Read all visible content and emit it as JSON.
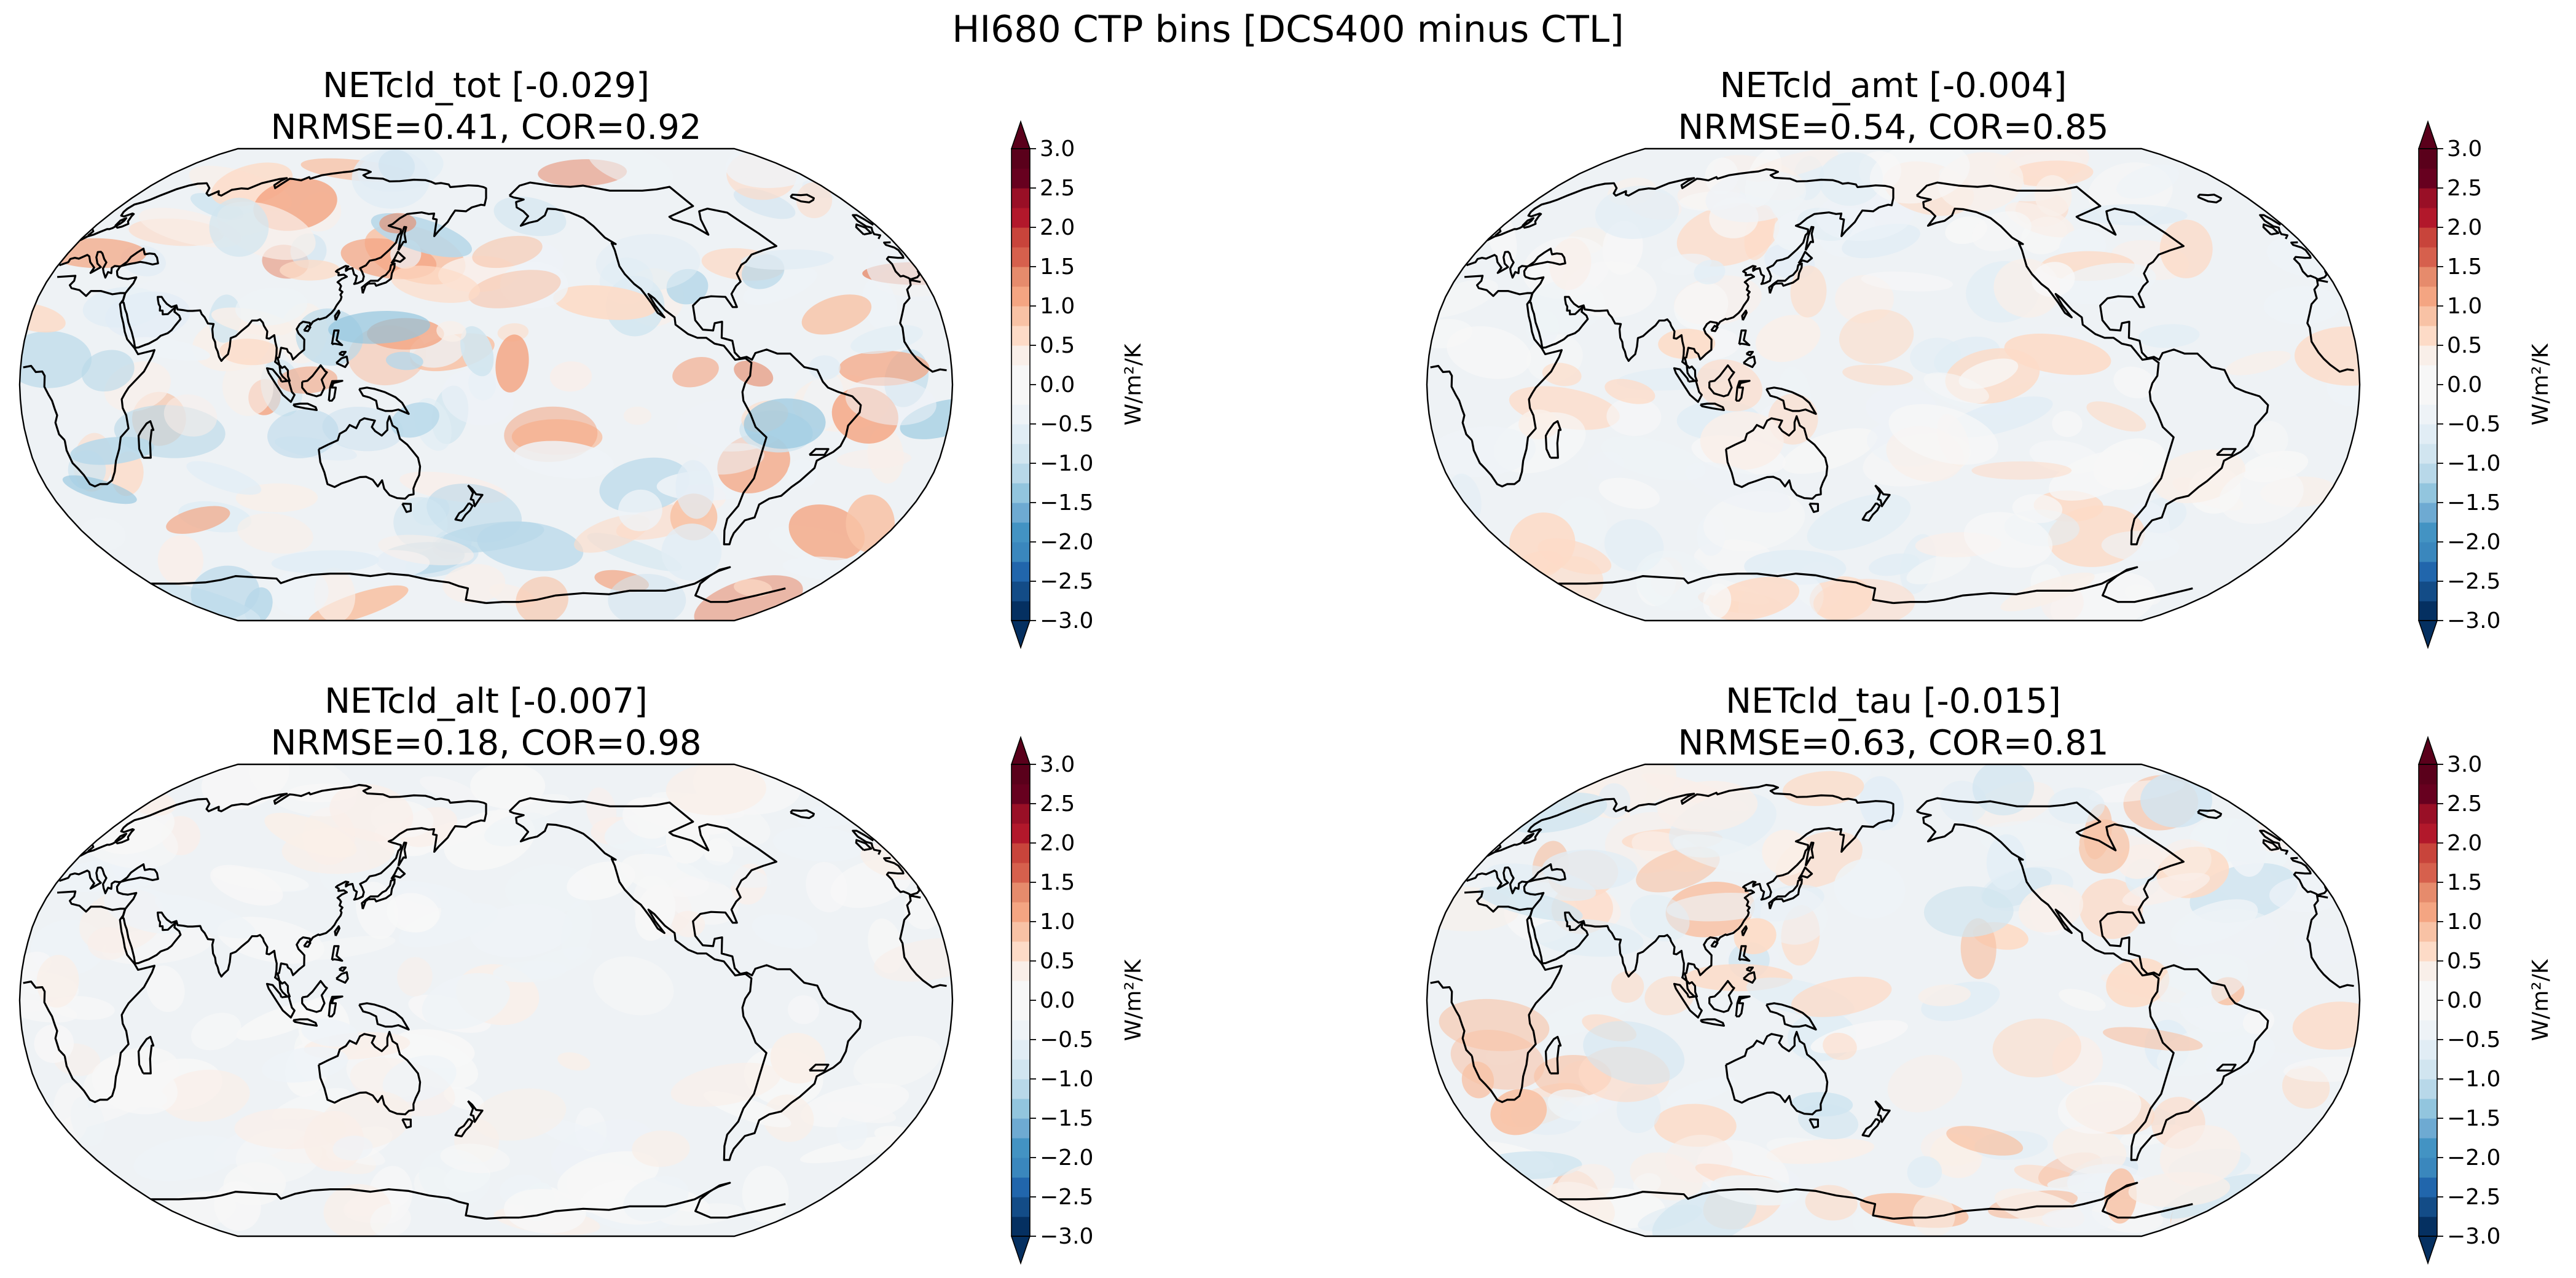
{
  "figure": {
    "suptitle": "HI680 CTP bins [DCS400 minus CTL]"
  },
  "colorbar": {
    "ticks": [
      3.0,
      2.5,
      2.0,
      1.5,
      1.0,
      0.5,
      0.0,
      -0.5,
      -1.0,
      -1.5,
      -2.0,
      -2.5,
      -3.0
    ],
    "tick_labels": [
      "3.0",
      "2.5",
      "2.0",
      "1.5",
      "1.0",
      "0.5",
      "0.0",
      "−0.5",
      "−1.0",
      "−1.5",
      "−2.0",
      "−2.5",
      "−3.0"
    ],
    "label": "W/m²/K",
    "levels": [
      -3.0,
      -2.75,
      -2.5,
      -2.25,
      -2.0,
      -1.75,
      -1.5,
      -1.25,
      -1.0,
      -0.75,
      -0.5,
      -0.25,
      0.0,
      0.25,
      0.5,
      0.75,
      1.0,
      1.25,
      1.5,
      1.75,
      2.0,
      2.25,
      2.5,
      2.75,
      3.0
    ],
    "cmap_colors": [
      "#053061",
      "#134c87",
      "#2166ac",
      "#3a87bd",
      "#4393c3",
      "#6eaad2",
      "#92c5de",
      "#b8d8e9",
      "#d1e5f0",
      "#e1edf5",
      "#eef3f7",
      "#f7f7f7",
      "#f7f7f7",
      "#f9efe9",
      "#fddbc7",
      "#f8c2a5",
      "#f4a582",
      "#e68b6c",
      "#d6604d",
      "#c8443b",
      "#b2182b",
      "#990f26",
      "#67001f",
      "#5a001b"
    ]
  },
  "chart_data": [
    {
      "type": "heatmap",
      "projection": "Robinson, centered 180°",
      "title_line1": "NETcld_tot [-0.029]",
      "title_line2": "NRMSE=0.41, COR=0.92",
      "variable": "NETcld_tot",
      "global_mean": -0.029,
      "nrmse": 0.41,
      "cor": 0.92,
      "vmin": -3.0,
      "vmax": 3.0,
      "amplitude": 1.35
    },
    {
      "type": "heatmap",
      "projection": "Robinson, centered 180°",
      "title_line1": "NETcld_amt [-0.004]",
      "title_line2": "NRMSE=0.54, COR=0.85",
      "variable": "NETcld_amt",
      "global_mean": -0.004,
      "nrmse": 0.54,
      "cor": 0.85,
      "vmin": -3.0,
      "vmax": 3.0,
      "amplitude": 0.65
    },
    {
      "type": "heatmap",
      "projection": "Robinson, centered 180°",
      "title_line1": "NETcld_alt [-0.007]",
      "title_line2": "NRMSE=0.18, COR=0.98",
      "variable": "NETcld_alt",
      "global_mean": -0.007,
      "nrmse": 0.18,
      "cor": 0.98,
      "vmin": -3.0,
      "vmax": 3.0,
      "amplitude": 0.45
    },
    {
      "type": "heatmap",
      "projection": "Robinson, centered 180°",
      "title_line1": "NETcld_tau [-0.015]",
      "title_line2": "NRMSE=0.63, COR=0.81",
      "variable": "NETcld_tau",
      "global_mean": -0.015,
      "nrmse": 0.63,
      "cor": 0.81,
      "vmin": -3.0,
      "vmax": 3.0,
      "amplitude": 0.95
    }
  ]
}
